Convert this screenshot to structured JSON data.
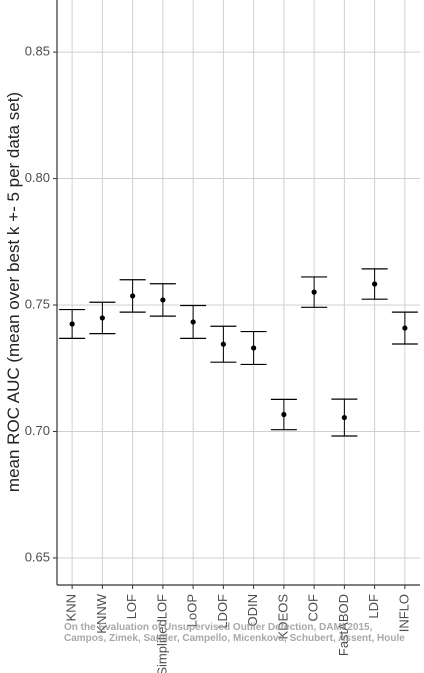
{
  "chart_data": {
    "type": "errorbar",
    "ylabel": "mean ROC AUC (mean over best k +- 5 per data set)",
    "categories": [
      "KNN",
      "KNNW",
      "LOF",
      "SimplifiedLOF",
      "LoOP",
      "LDOF",
      "ODIN",
      "KDEOS",
      "COF",
      "FastABOD",
      "LDF",
      "INFLO"
    ],
    "values": [
      0.7425,
      0.7449,
      0.7536,
      0.752,
      0.7433,
      0.7345,
      0.733,
      0.7067,
      0.7551,
      0.7055,
      0.7583,
      0.7409
    ],
    "errors": [
      0.0057,
      0.0062,
      0.0064,
      0.0064,
      0.0065,
      0.0071,
      0.0065,
      0.006,
      0.006,
      0.0073,
      0.006,
      0.0063
    ],
    "color": "#000000",
    "ylim": [
      0.6393,
      0.8706
    ],
    "yticks": [
      {
        "value": 0.65,
        "label": "0.65"
      },
      {
        "value": 0.7,
        "label": "0.70"
      },
      {
        "value": 0.75,
        "label": "0.75"
      },
      {
        "value": 0.8,
        "label": "0.80"
      },
      {
        "value": 0.85,
        "label": "0.85"
      }
    ],
    "grid": true,
    "annotations": [
      "On the Evaluation of Unsupervised Outlier Detection, DAMI 2015,",
      "Campos, Zimek, Sander, Campello, Micenková, Schubert, Assent, Houle"
    ]
  }
}
